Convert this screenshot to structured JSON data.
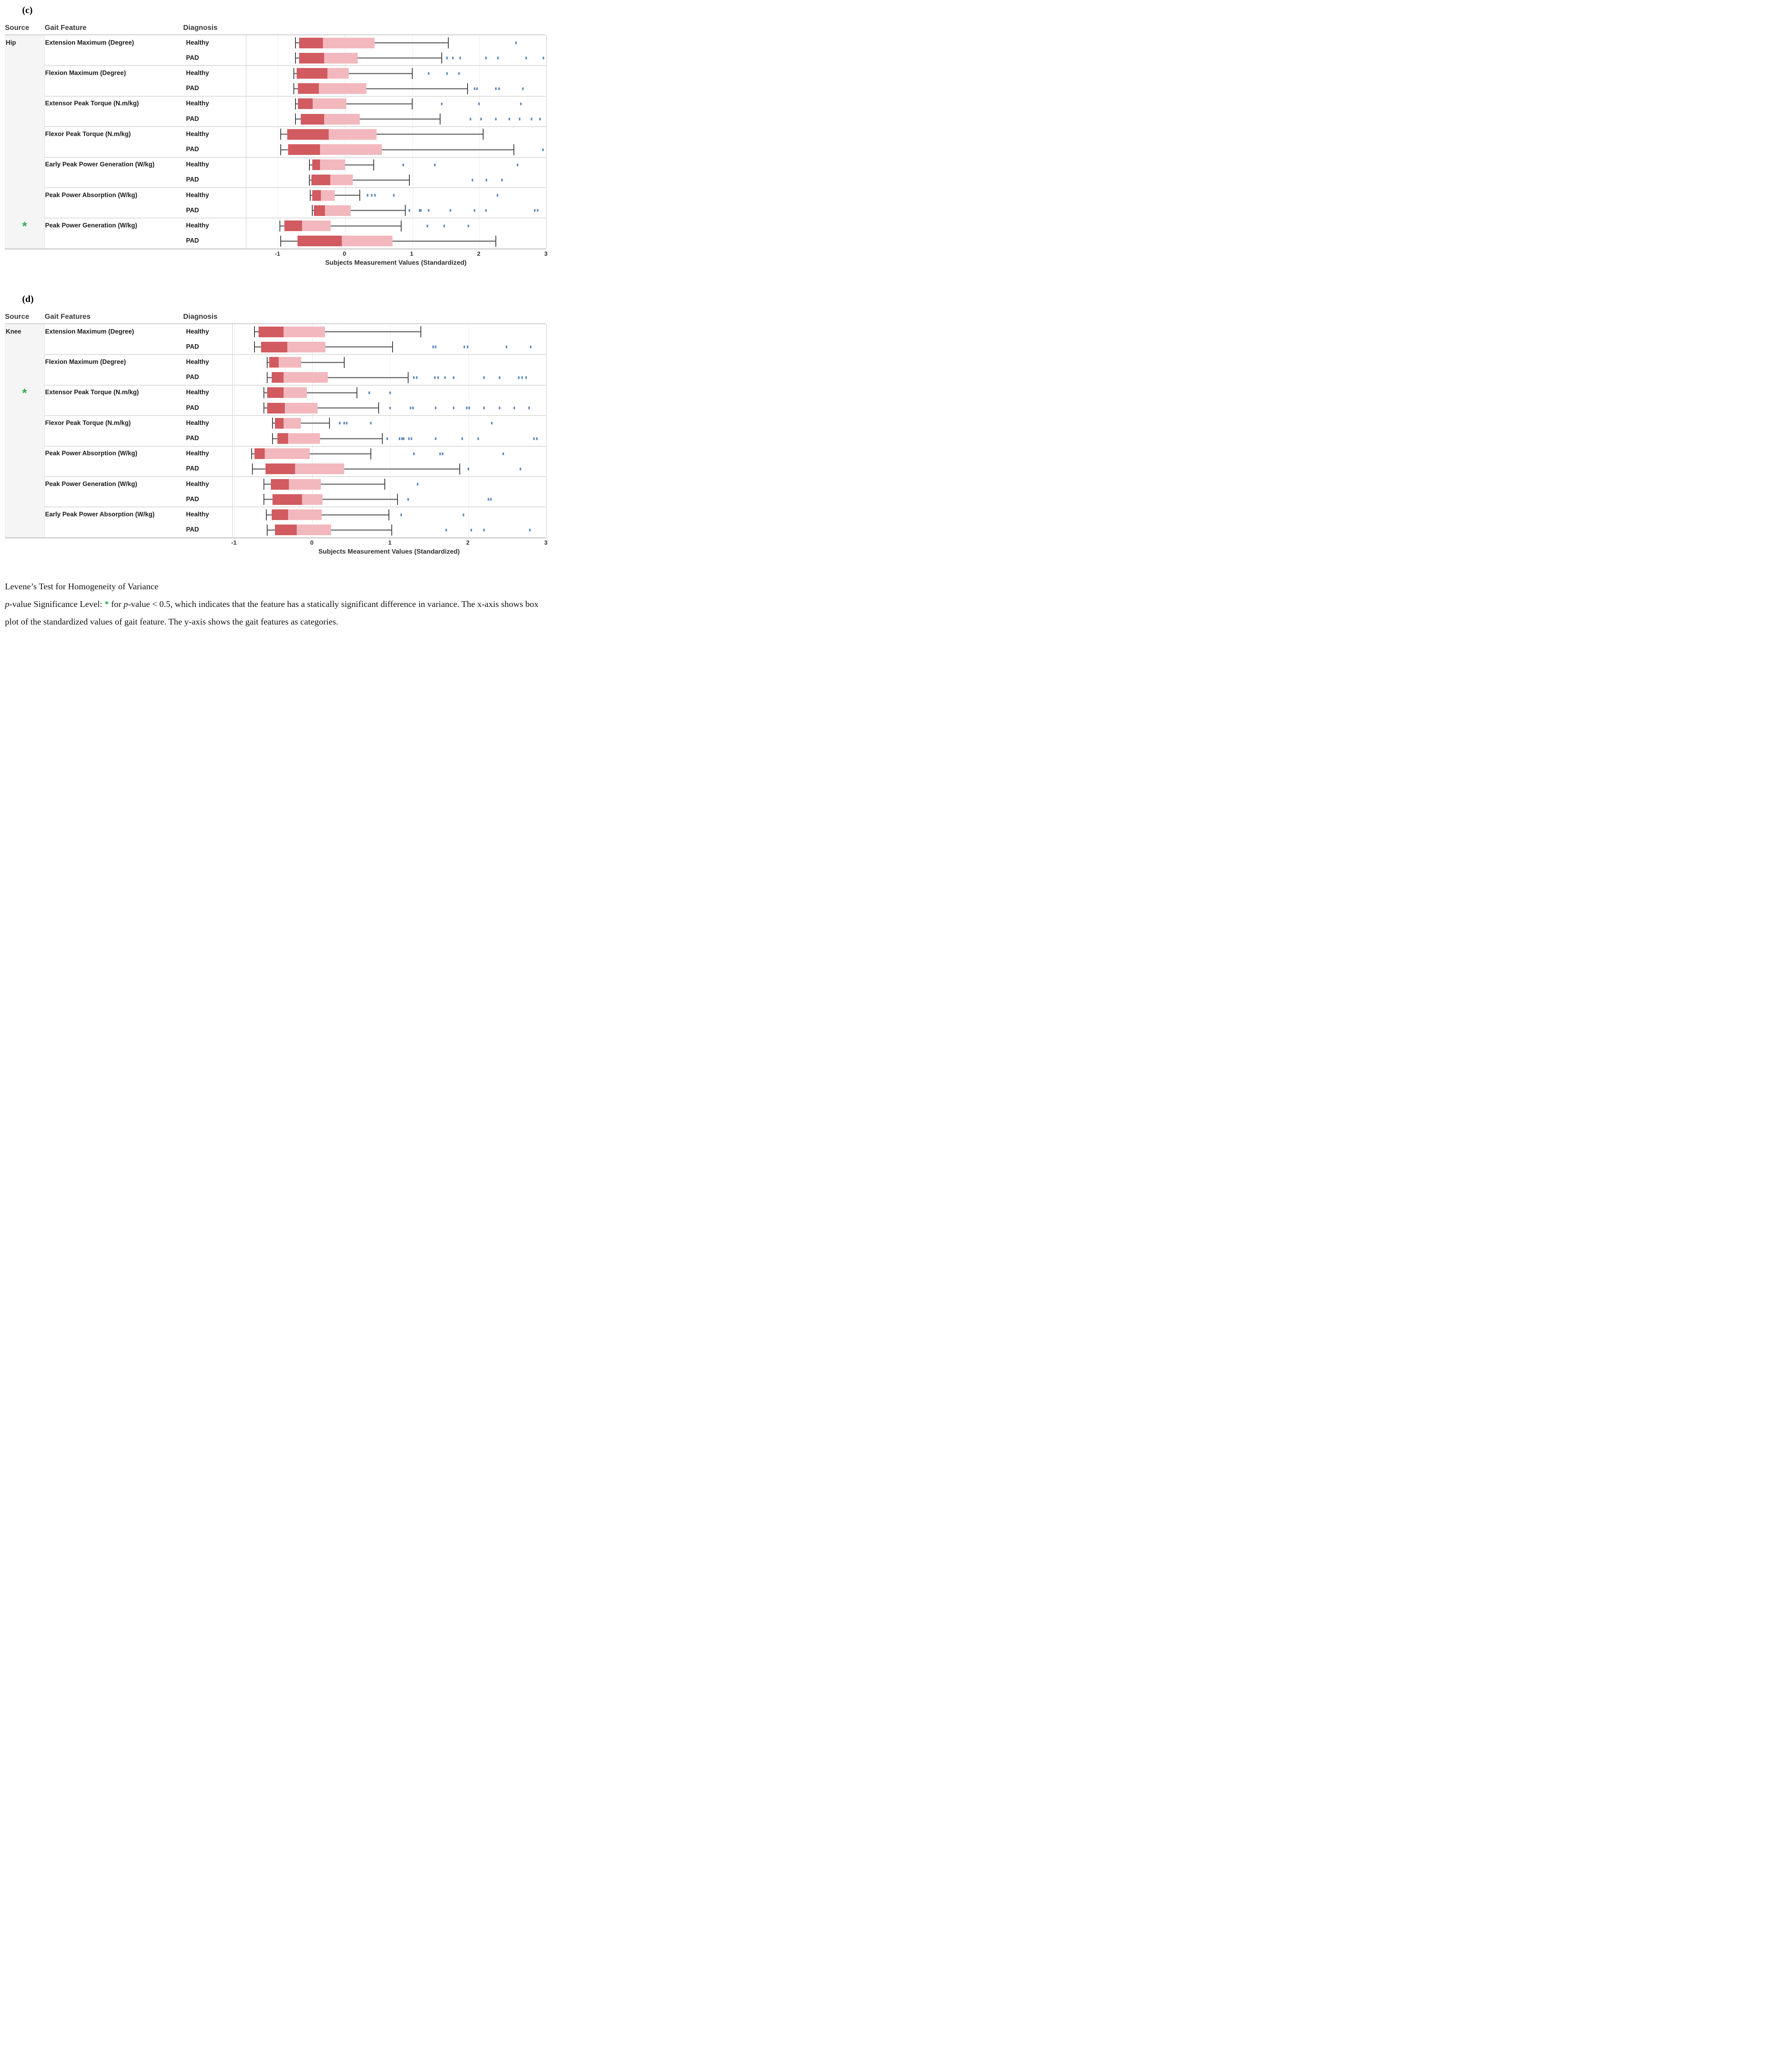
{
  "caption": {
    "line1": [
      {
        "text": "Levene’s Test for Homogeneity of Variance"
      }
    ],
    "para": [
      {
        "text": "p",
        "italic": true
      },
      {
        "text": "-value Significance Level: "
      },
      {
        "text": "*",
        "star": true
      },
      {
        "text": " for "
      },
      {
        "text": "p",
        "italic": true
      },
      {
        "text": "-value < 0.5, which indicates that the feature has a statically significant difference in variance. The x-axis shows box plot of the standardized values of gait feature. The y-axis shows the gait features as categories."
      }
    ]
  },
  "colors": {
    "box_dark": "#d15b60",
    "box_light": "#f2b8bd",
    "whisker_line": "#787878",
    "whisker_cap": "#3d3d3d",
    "outlier_dot": "#4a7ab4",
    "significance_green": "#2eae4c",
    "source_col_bg": "#f5f5f5",
    "grid_line": "#ececec",
    "separator": "#dcdcdc",
    "header_text": "#3a3a3a"
  },
  "chart_data": [
    {
      "type": "boxplot",
      "panel_id": "c",
      "panel_label": "(c)",
      "source": "Hip",
      "marker": "*",
      "columns": {
        "source": "Source",
        "feature": "Gait Feature",
        "diagnosis": "Diagnosis"
      },
      "xlabel": "Subjects Measurement Values (Standardized)",
      "x_ticks": [
        -1,
        0,
        1,
        2,
        3
      ],
      "xlim": [
        -1.47,
        3.0
      ],
      "grid": true,
      "groups": [
        {
          "feature": "Extension Maximum (Degree)",
          "significant": false,
          "rows": [
            {
              "diagnosis": "Healthy",
              "whisker_low": -0.74,
              "q1": -0.68,
              "median": -0.33,
              "q3": 0.44,
              "whisker_high": 1.54,
              "outliers": [
                2.55
              ]
            },
            {
              "diagnosis": "PAD",
              "whisker_low": -0.74,
              "q1": -0.68,
              "median": -0.31,
              "q3": 0.19,
              "whisker_high": 1.44,
              "outliers": [
                1.52,
                1.61,
                1.72,
                2.1,
                2.28,
                2.7,
                2.96
              ]
            }
          ]
        },
        {
          "feature": "Flexion Maximum (Degree)",
          "significant": false,
          "rows": [
            {
              "diagnosis": "Healthy",
              "whisker_low": -0.76,
              "q1": -0.72,
              "median": -0.26,
              "q3": 0.06,
              "whisker_high": 1.0,
              "outliers": [
                1.25,
                1.52,
                1.7
              ]
            },
            {
              "diagnosis": "PAD",
              "whisker_low": -0.76,
              "q1": -0.7,
              "median": -0.39,
              "q3": 0.32,
              "whisker_high": 1.83,
              "outliers": [
                1.93,
                1.97,
                2.25,
                2.3,
                2.65
              ]
            }
          ]
        },
        {
          "feature": "Extensor Peak Torque (N.m/kg)",
          "significant": false,
          "rows": [
            {
              "diagnosis": "Healthy",
              "whisker_low": -0.74,
              "q1": -0.7,
              "median": -0.48,
              "q3": 0.02,
              "whisker_high": 1.0,
              "outliers": [
                1.44,
                2.0,
                2.62
              ]
            },
            {
              "diagnosis": "PAD",
              "whisker_low": -0.74,
              "q1": -0.66,
              "median": -0.31,
              "q3": 0.22,
              "whisker_high": 1.42,
              "outliers": [
                1.87,
                2.03,
                2.25,
                2.45,
                2.6,
                2.78,
                2.91
              ]
            }
          ]
        },
        {
          "feature": "Flexor Peak Torque (N.m/kg)",
          "significant": false,
          "rows": [
            {
              "diagnosis": "Healthy",
              "whisker_low": -0.96,
              "q1": -0.86,
              "median": -0.24,
              "q3": 0.47,
              "whisker_high": 2.06,
              "outliers": []
            },
            {
              "diagnosis": "PAD",
              "whisker_low": -0.96,
              "q1": -0.85,
              "median": -0.37,
              "q3": 0.55,
              "whisker_high": 2.52,
              "outliers": [
                2.95
              ]
            }
          ]
        },
        {
          "feature": "Early Peak Power Generation (W/kg)",
          "significant": false,
          "rows": [
            {
              "diagnosis": "Healthy",
              "whisker_low": -0.53,
              "q1": -0.49,
              "median": -0.37,
              "q3": 0.0,
              "whisker_high": 0.43,
              "outliers": [
                0.87,
                1.34,
                2.57
              ]
            },
            {
              "diagnosis": "PAD",
              "whisker_low": -0.53,
              "q1": -0.5,
              "median": -0.22,
              "q3": 0.12,
              "whisker_high": 0.96,
              "outliers": [
                1.9,
                2.11,
                2.34
              ]
            }
          ]
        },
        {
          "feature": "Peak Power Absorption (W/kg)",
          "significant": false,
          "rows": [
            {
              "diagnosis": "Healthy",
              "whisker_low": -0.52,
              "q1": -0.49,
              "median": -0.36,
              "q3": -0.15,
              "whisker_high": 0.22,
              "outliers": [
                0.34,
                0.4,
                0.45,
                0.73,
                2.27
              ]
            },
            {
              "diagnosis": "PAD",
              "whisker_low": -0.49,
              "q1": -0.46,
              "median": -0.3,
              "q3": 0.09,
              "whisker_high": 0.9,
              "outliers": [
                0.96,
                1.11,
                1.13,
                1.25,
                1.57,
                1.93,
                2.1,
                2.83,
                2.87
              ]
            }
          ]
        },
        {
          "feature": "Peak Power Generation (W/kg)",
          "significant": true,
          "rows": [
            {
              "diagnosis": "Healthy",
              "whisker_low": -0.97,
              "q1": -0.9,
              "median": -0.64,
              "q3": -0.21,
              "whisker_high": 0.84,
              "outliers": [
                1.23,
                1.48,
                1.84
              ]
            },
            {
              "diagnosis": "PAD",
              "whisker_low": -0.96,
              "q1": -0.71,
              "median": -0.05,
              "q3": 0.71,
              "whisker_high": 2.25,
              "outliers": []
            }
          ]
        }
      ]
    },
    {
      "type": "boxplot",
      "panel_id": "d",
      "panel_label": "(d)",
      "source": "Knee",
      "marker": "*",
      "columns": {
        "source": "Source",
        "feature": "Gait Features",
        "diagnosis": "Diagnosis"
      },
      "xlabel": "Subjects Measurement Values (Standardized)",
      "x_ticks": [
        -1,
        0,
        1,
        2,
        3
      ],
      "xlim": [
        -1.02,
        3.0
      ],
      "grid": true,
      "groups": [
        {
          "feature": "Extension Maximum (Degree)",
          "significant": false,
          "rows": [
            {
              "diagnosis": "Healthy",
              "whisker_low": -0.74,
              "q1": -0.69,
              "median": -0.37,
              "q3": 0.16,
              "whisker_high": 1.39,
              "outliers": []
            },
            {
              "diagnosis": "PAD",
              "whisker_low": -0.74,
              "q1": -0.66,
              "median": -0.32,
              "q3": 0.17,
              "whisker_high": 1.03,
              "outliers": [
                1.55,
                1.58,
                1.95,
                1.99,
                2.49,
                2.8
              ]
            }
          ]
        },
        {
          "feature": "Flexion Maximum (Degree)",
          "significant": false,
          "rows": [
            {
              "diagnosis": "Healthy",
              "whisker_low": -0.58,
              "q1": -0.55,
              "median": -0.43,
              "q3": -0.14,
              "whisker_high": 0.41,
              "outliers": []
            },
            {
              "diagnosis": "PAD",
              "whisker_low": -0.58,
              "q1": -0.52,
              "median": -0.37,
              "q3": 0.2,
              "whisker_high": 1.23,
              "outliers": [
                1.3,
                1.34,
                1.57,
                1.61,
                1.7,
                1.81,
                2.2,
                2.4,
                2.65,
                2.69,
                2.74
              ]
            }
          ]
        },
        {
          "feature": "Extensor Peak Torque (N.m/kg)",
          "significant": true,
          "rows": [
            {
              "diagnosis": "Healthy",
              "whisker_low": -0.62,
              "q1": -0.58,
              "median": -0.37,
              "q3": -0.07,
              "whisker_high": 0.57,
              "outliers": [
                0.73,
                1.0
              ]
            },
            {
              "diagnosis": "PAD",
              "whisker_low": -0.62,
              "q1": -0.58,
              "median": -0.35,
              "q3": 0.07,
              "whisker_high": 0.85,
              "outliers": [
                1.0,
                1.26,
                1.29,
                1.58,
                1.81,
                1.98,
                2.01,
                2.2,
                2.4,
                2.59,
                2.78
              ]
            }
          ]
        },
        {
          "feature": "Flexor Peak Torque (N.m/kg)",
          "significant": false,
          "rows": [
            {
              "diagnosis": "Healthy",
              "whisker_low": -0.51,
              "q1": -0.48,
              "median": -0.37,
              "q3": -0.15,
              "whisker_high": 0.22,
              "outliers": [
                0.35,
                0.41,
                0.44,
                0.75,
                2.3
              ]
            },
            {
              "diagnosis": "PAD",
              "whisker_low": -0.51,
              "q1": -0.45,
              "median": -0.31,
              "q3": 0.1,
              "whisker_high": 0.9,
              "outliers": [
                0.96,
                1.12,
                1.15,
                1.17,
                1.24,
                1.27,
                1.58,
                1.92,
                2.13,
                2.84,
                2.88
              ]
            }
          ]
        },
        {
          "feature": "Peak Power Absorption (W/kg)",
          "significant": false,
          "rows": [
            {
              "diagnosis": "Healthy",
              "whisker_low": -0.78,
              "q1": -0.74,
              "median": -0.61,
              "q3": -0.03,
              "whisker_high": 0.75,
              "outliers": [
                1.3,
                1.64,
                1.67,
                2.45
              ]
            },
            {
              "diagnosis": "PAD",
              "whisker_low": -0.77,
              "q1": -0.6,
              "median": -0.22,
              "q3": 0.41,
              "whisker_high": 1.89,
              "outliers": [
                2.0,
                2.67
              ]
            }
          ]
        },
        {
          "feature": "Peak Power Generation (W/kg)",
          "significant": false,
          "rows": [
            {
              "diagnosis": "Healthy",
              "whisker_low": -0.62,
              "q1": -0.53,
              "median": -0.3,
              "q3": 0.11,
              "whisker_high": 0.93,
              "outliers": [
                1.35
              ]
            },
            {
              "diagnosis": "PAD",
              "whisker_low": -0.62,
              "q1": -0.51,
              "median": -0.13,
              "q3": 0.13,
              "whisker_high": 1.09,
              "outliers": [
                1.23,
                2.26,
                2.29
              ]
            }
          ]
        },
        {
          "feature": "Early Peak Power Absorption (W/kg)",
          "significant": false,
          "rows": [
            {
              "diagnosis": "Healthy",
              "whisker_low": -0.59,
              "q1": -0.52,
              "median": -0.31,
              "q3": 0.12,
              "whisker_high": 0.98,
              "outliers": [
                1.14,
                1.94
              ]
            },
            {
              "diagnosis": "PAD",
              "whisker_low": -0.58,
              "q1": -0.48,
              "median": -0.2,
              "q3": 0.24,
              "whisker_high": 1.02,
              "outliers": [
                1.72,
                2.04,
                2.2,
                2.79
              ]
            }
          ]
        }
      ]
    }
  ]
}
